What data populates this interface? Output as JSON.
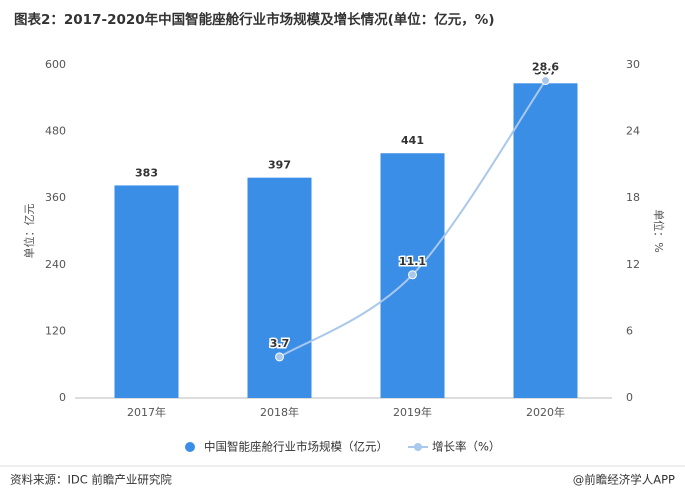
{
  "chart_data": {
    "type": "bar",
    "title": "图表2：2017-2020年中国智能座舱行业市场规模及增长情况(单位：亿元，%)",
    "y_label": "单位：亿元",
    "y2_label": "单位：%",
    "categories": [
      "2017年",
      "2018年",
      "2019年",
      "2020年"
    ],
    "series": [
      {
        "name": "中国智能座舱行业市场规模（亿元）",
        "type": "bar",
        "color": "#3a8ee6",
        "values": [
          383,
          397,
          441,
          567
        ]
      },
      {
        "name": "增长率（%）",
        "type": "line",
        "axis": "y2",
        "color": "#a9c8ec",
        "values": [
          null,
          3.7,
          11.1,
          28.6
        ]
      }
    ],
    "ylim": [
      0,
      600
    ],
    "yticks": [
      0,
      120,
      240,
      360,
      480,
      600
    ],
    "y2lim": [
      0,
      30
    ],
    "y2ticks": [
      0,
      6,
      12,
      18,
      24,
      30
    ],
    "grid": false,
    "source": "资料来源：IDC 前瞻产业研究院",
    "credit": "@前瞻经济学人APP"
  }
}
